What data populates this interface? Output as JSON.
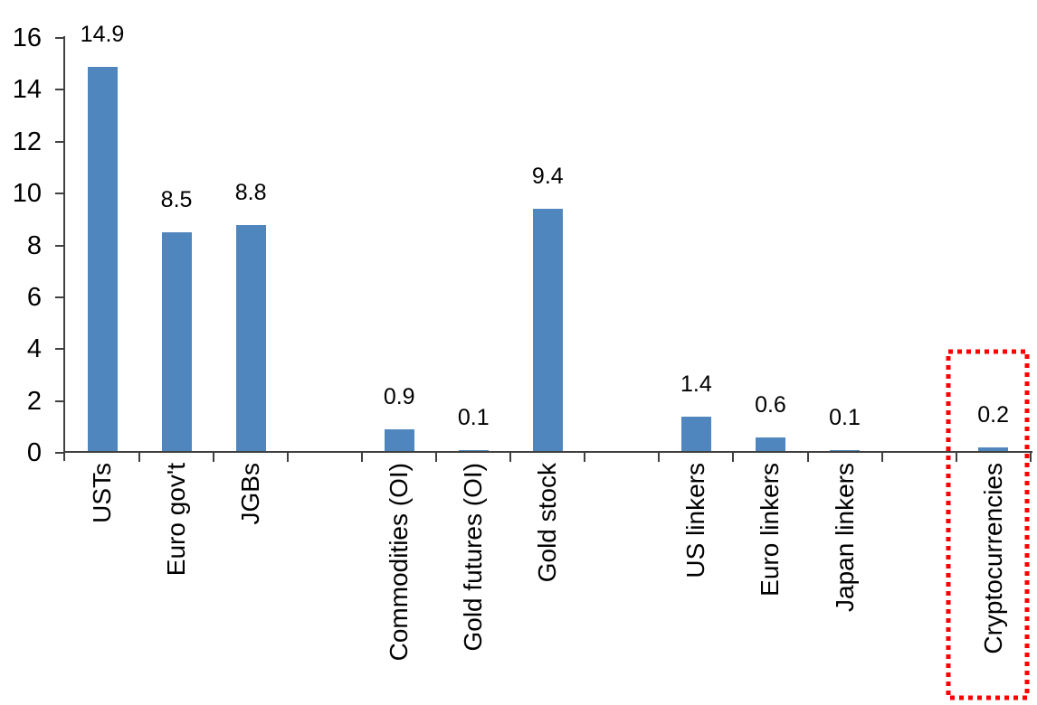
{
  "chart_data": {
    "type": "bar",
    "title": "",
    "xlabel": "",
    "ylabel": "",
    "categories": [
      "USTs",
      "Euro gov't",
      "JGBs",
      "Commodities (OI)",
      "Gold futures (OI)",
      "Gold stock",
      "US linkers",
      "Euro linkers",
      "Japan linkers",
      "Cryptocurrencies"
    ],
    "values": [
      14.9,
      8.5,
      8.8,
      0.9,
      0.1,
      9.4,
      1.4,
      0.6,
      0.1,
      0.2
    ],
    "value_labels": [
      "14.9",
      "8.5",
      "8.8",
      "0.9",
      "0.1",
      "9.4",
      "1.4",
      "0.6",
      "0.1",
      "0.2"
    ],
    "slots": [
      1,
      2,
      3,
      5,
      6,
      7,
      9,
      10,
      11,
      13
    ],
    "total_slots": 13,
    "ylim": [
      0,
      16
    ],
    "ytick_step": 2,
    "ytick_labels": [
      "0",
      "2",
      "4",
      "6",
      "8",
      "10",
      "12",
      "14",
      "16"
    ],
    "grid": false,
    "legend": null,
    "category_label_rotation_deg": 90,
    "bar_color": "#4F86BD",
    "axis_color": "#404040",
    "label_color": "#000000",
    "highlight": {
      "category": "Cryptocurrencies",
      "style": "dotted-box",
      "color": "#FF0000"
    }
  }
}
